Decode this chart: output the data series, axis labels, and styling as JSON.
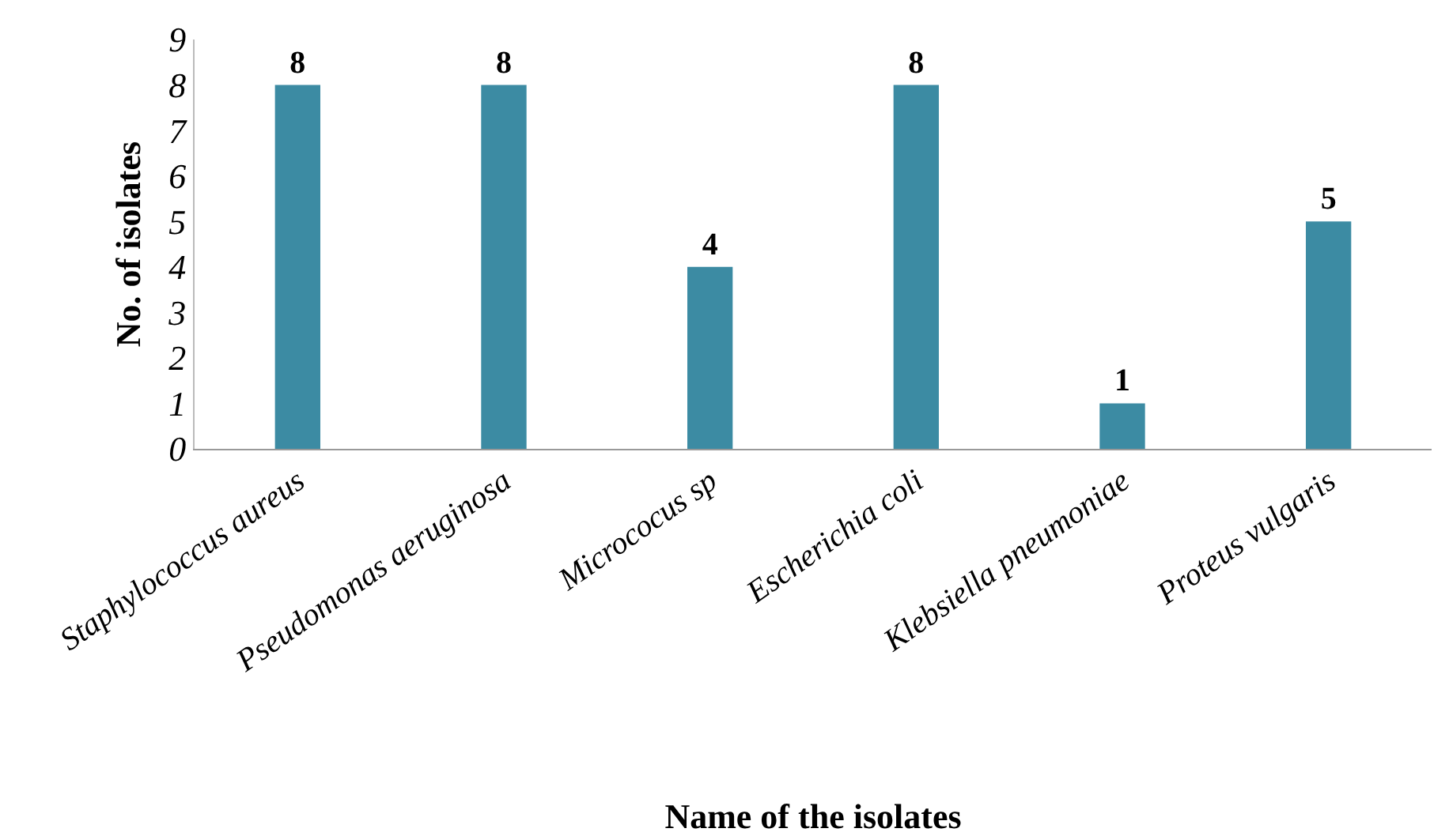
{
  "chart_data": {
    "type": "bar",
    "xlabel": "Name of the isolates",
    "ylabel": "No. of isolates",
    "categories": [
      "Staphylococcus aureus",
      "Pseudomonas aeruginosa",
      "Micrococus sp",
      "Escherichia coli",
      "Klebsiella pneumoniae",
      "Proteus vulgaris"
    ],
    "values": [
      8,
      8,
      4,
      8,
      1,
      5
    ],
    "color": "#3c8ba3",
    "ylim": [
      0,
      9
    ],
    "yticks": [
      0,
      1,
      2,
      3,
      4,
      5,
      6,
      7,
      8,
      9
    ],
    "grid": false,
    "data_labels": true
  }
}
